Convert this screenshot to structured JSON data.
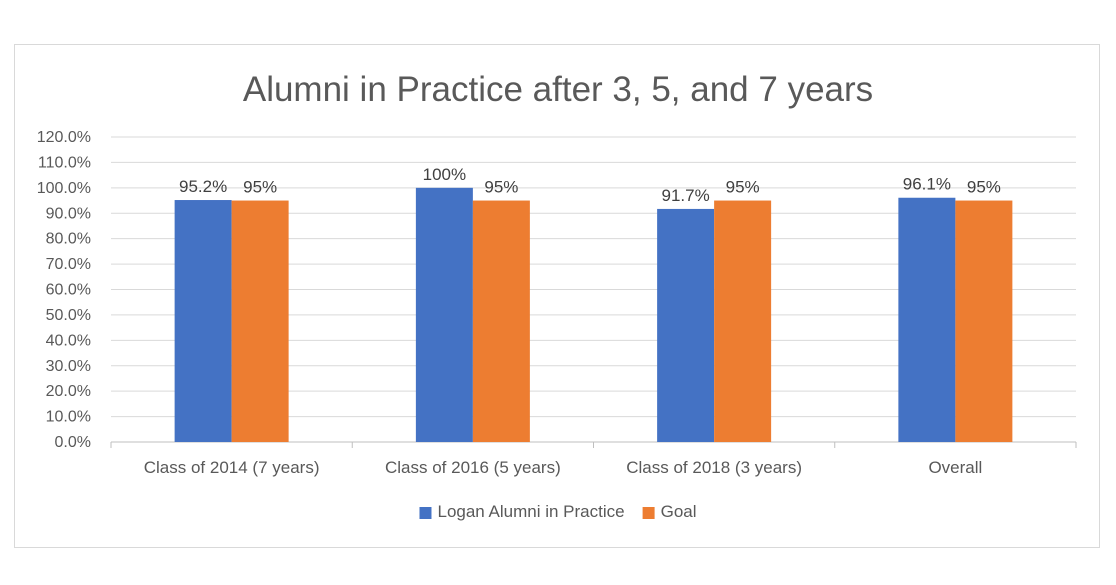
{
  "chart_data": {
    "type": "bar",
    "title": "Alumni in Practice after 3, 5, and 7 years",
    "xlabel": "",
    "ylabel": "",
    "categories": [
      "Class of 2014 (7 years)",
      "Class of 2016 (5 years)",
      "Class of 2018 (3 years)",
      "Overall"
    ],
    "series": [
      {
        "name": "Logan Alumni in Practice",
        "color": "#4472c4",
        "values": [
          95.2,
          100,
          91.7,
          96.1
        ],
        "labels": [
          "95.2%",
          "100%",
          "91.7%",
          "96.1%"
        ]
      },
      {
        "name": "Goal",
        "color": "#ed7d31",
        "values": [
          95,
          95,
          95,
          95
        ],
        "labels": [
          "95%",
          "95%",
          "95%",
          "95%"
        ]
      }
    ],
    "ylim": [
      0,
      120
    ],
    "ytick_step": 10,
    "ytick_labels": [
      "0.0%",
      "10.0%",
      "20.0%",
      "30.0%",
      "40.0%",
      "50.0%",
      "60.0%",
      "70.0%",
      "80.0%",
      "90.0%",
      "100.0%",
      "110.0%",
      "120.0%"
    ],
    "grid": true,
    "legend_position": "bottom"
  }
}
